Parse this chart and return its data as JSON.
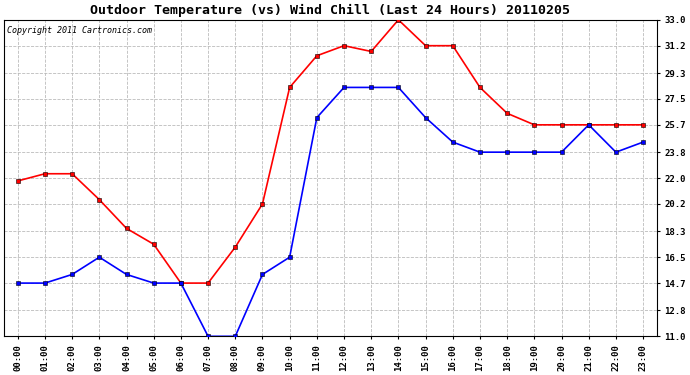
{
  "title": "Outdoor Temperature (vs) Wind Chill (Last 24 Hours) 20110205",
  "copyright_text": "Copyright 2011 Cartronics.com",
  "x_labels": [
    "00:00",
    "01:00",
    "02:00",
    "03:00",
    "04:00",
    "05:00",
    "06:00",
    "07:00",
    "08:00",
    "09:00",
    "10:00",
    "11:00",
    "12:00",
    "13:00",
    "14:00",
    "15:00",
    "16:00",
    "17:00",
    "18:00",
    "19:00",
    "20:00",
    "21:00",
    "22:00",
    "23:00"
  ],
  "y_ticks": [
    11.0,
    12.8,
    14.7,
    16.5,
    18.3,
    20.2,
    22.0,
    23.8,
    25.7,
    27.5,
    29.3,
    31.2,
    33.0
  ],
  "ylim": [
    11.0,
    33.0
  ],
  "red_data": [
    21.8,
    22.3,
    22.3,
    20.5,
    18.5,
    17.4,
    14.7,
    14.7,
    17.2,
    20.2,
    28.3,
    30.5,
    31.2,
    30.8,
    33.0,
    31.2,
    31.2,
    28.3,
    26.5,
    25.7,
    25.7,
    25.7,
    25.7,
    25.7
  ],
  "blue_data": [
    14.7,
    14.7,
    15.3,
    16.5,
    15.3,
    14.7,
    14.7,
    11.0,
    11.0,
    15.3,
    16.5,
    26.2,
    28.3,
    28.3,
    28.3,
    26.2,
    24.5,
    23.8,
    23.8,
    23.8,
    23.8,
    25.7,
    23.8,
    24.5
  ],
  "red_color": "#ff0000",
  "blue_color": "#0000ff",
  "bg_color": "#ffffff",
  "plot_bg_color": "#ffffff",
  "grid_color": "#bbbbbb",
  "title_fontsize": 9.5,
  "copyright_fontsize": 6,
  "tick_fontsize": 6.5,
  "marker_size": 3,
  "linewidth": 1.2
}
